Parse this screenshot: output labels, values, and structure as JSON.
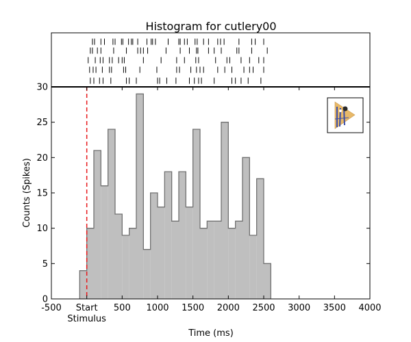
{
  "chart_data": {
    "type": "bar",
    "title": "Histogram for cutlery00",
    "xlabel": "Time (ms)",
    "ylabel": "Counts (Spikes)",
    "xlim": [
      -500,
      4000
    ],
    "ylim": [
      0,
      30
    ],
    "x_ticks": [
      {
        "value": -500,
        "label": "-500"
      },
      {
        "value": 0,
        "label": "Start"
      },
      {
        "value": 500,
        "label": "500"
      },
      {
        "value": 1000,
        "label": "1000"
      },
      {
        "value": 1500,
        "label": "1500"
      },
      {
        "value": 2000,
        "label": "2000"
      },
      {
        "value": 2500,
        "label": "2500"
      },
      {
        "value": 3000,
        "label": "3000"
      },
      {
        "value": 3500,
        "label": "3500"
      },
      {
        "value": 4000,
        "label": "4000"
      }
    ],
    "x_sublabel": {
      "value": 0,
      "label": "Stimulus"
    },
    "y_ticks": [
      0,
      5,
      10,
      15,
      20,
      25,
      30
    ],
    "bin_width": 100,
    "bins": [
      {
        "start": -100,
        "count": 4
      },
      {
        "start": 0,
        "count": 10
      },
      {
        "start": 100,
        "count": 21
      },
      {
        "start": 200,
        "count": 16
      },
      {
        "start": 300,
        "count": 24
      },
      {
        "start": 400,
        "count": 12
      },
      {
        "start": 500,
        "count": 9
      },
      {
        "start": 600,
        "count": 10
      },
      {
        "start": 700,
        "count": 29
      },
      {
        "start": 800,
        "count": 7
      },
      {
        "start": 900,
        "count": 15
      },
      {
        "start": 1000,
        "count": 13
      },
      {
        "start": 1100,
        "count": 18
      },
      {
        "start": 1200,
        "count": 11
      },
      {
        "start": 1300,
        "count": 18
      },
      {
        "start": 1400,
        "count": 13
      },
      {
        "start": 1500,
        "count": 24
      },
      {
        "start": 1600,
        "count": 10
      },
      {
        "start": 1700,
        "count": 11
      },
      {
        "start": 1800,
        "count": 11
      },
      {
        "start": 1900,
        "count": 25
      },
      {
        "start": 2000,
        "count": 10
      },
      {
        "start": 2100,
        "count": 11
      },
      {
        "start": 2200,
        "count": 20
      },
      {
        "start": 2300,
        "count": 9
      },
      {
        "start": 2400,
        "count": 17
      },
      {
        "start": 2500,
        "count": 5
      }
    ],
    "stimulus_line_x": 0,
    "raster": [
      [
        80,
        110,
        200,
        250,
        370,
        400,
        490,
        510,
        590,
        630,
        650,
        720,
        850,
        910,
        930,
        970,
        1150,
        1300,
        1320,
        1380,
        1420,
        1530,
        1560,
        1650,
        1720,
        1850,
        1890,
        1940,
        2150,
        2330,
        2380,
        2500
      ],
      [
        50,
        80,
        150,
        200,
        380,
        560,
        720,
        760,
        800,
        860,
        1120,
        1320,
        1450,
        1550,
        1570,
        1720,
        1800,
        1900,
        2120,
        2150,
        2330,
        2550
      ],
      [
        20,
        120,
        190,
        230,
        320,
        360,
        450,
        500,
        530,
        800,
        1050,
        1270,
        1380,
        1540,
        1580,
        1820,
        1980,
        2020,
        2180,
        2300,
        2430,
        2500
      ],
      [
        40,
        90,
        130,
        220,
        320,
        350,
        520,
        550,
        750,
        990,
        1270,
        1310,
        1470,
        1550,
        1600,
        1650,
        1850,
        1950,
        2050,
        2220,
        2300,
        2350,
        2500
      ],
      [
        50,
        100,
        180,
        230,
        340,
        560,
        600,
        700,
        1000,
        1030,
        1130,
        1260,
        1450,
        1520,
        1580,
        1620,
        1800,
        2050,
        2100,
        2180,
        2280,
        2460
      ]
    ],
    "colors": {
      "bar_fill": "#bfbfbf",
      "bar_edge": "#707070",
      "stimulus_line": "#e8181b",
      "axis": "#000000",
      "legend_icon_triangle": "#e8b969",
      "legend_icon_figure": "#3a4ea8"
    },
    "legend": {
      "placement": "top-right",
      "icon": "cutlery-thumbnail-icon"
    },
    "grid": false
  }
}
